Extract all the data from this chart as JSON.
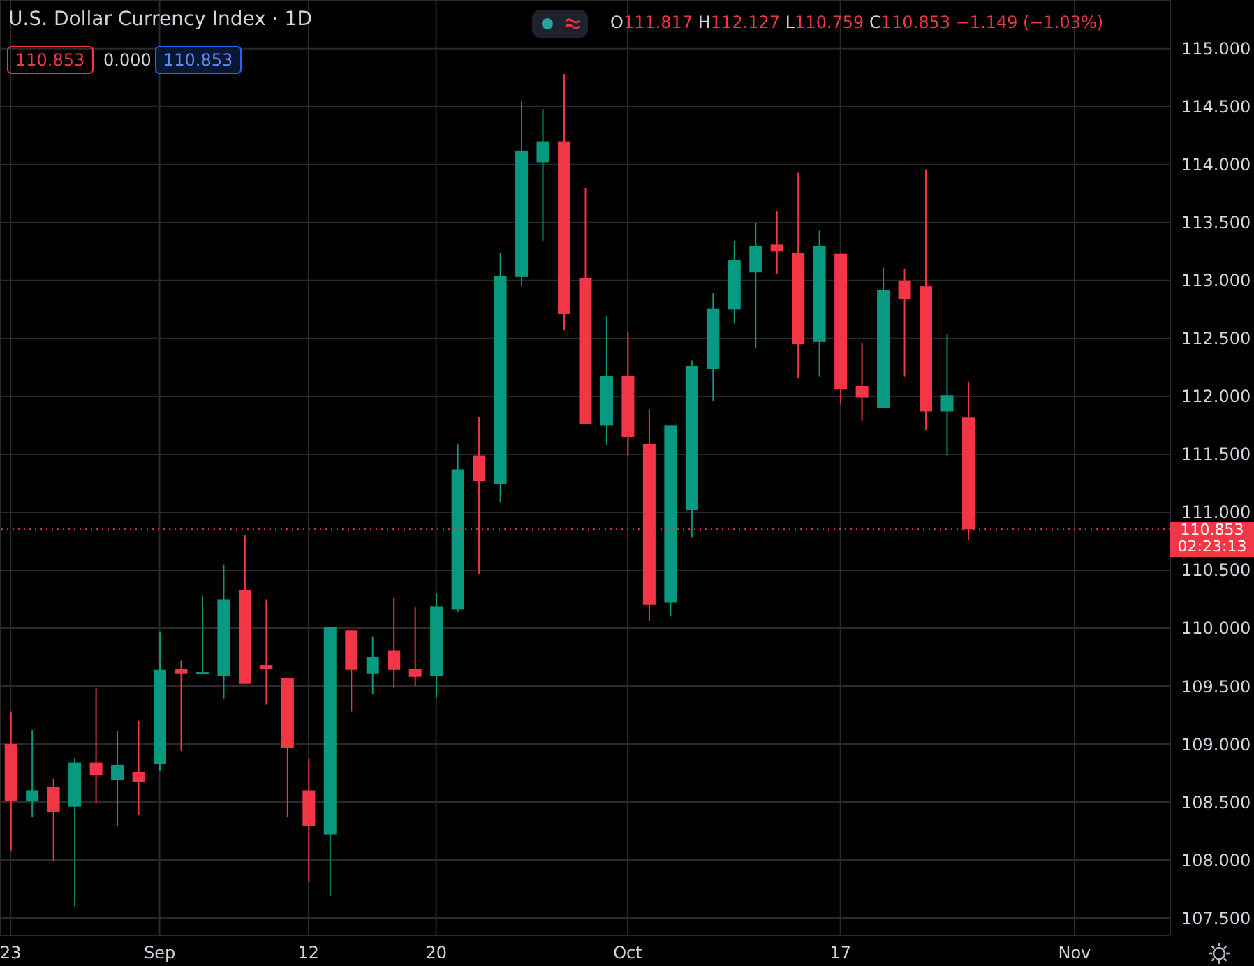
{
  "chart_data": {
    "type": "candlestick",
    "title": "U.S. Dollar Currency Index · 1D",
    "categories": [
      "23",
      null,
      null,
      null,
      null,
      null,
      null,
      "Sep",
      null,
      null,
      null,
      null,
      null,
      null,
      "12",
      null,
      null,
      null,
      null,
      null,
      "20",
      null,
      null,
      null,
      null,
      null,
      null,
      null,
      null,
      "Oct",
      null,
      null,
      null,
      null,
      null,
      null,
      null,
      null,
      null,
      "17",
      null,
      null,
      null,
      null,
      null,
      null,
      null,
      null,
      null,
      null,
      "Nov",
      null,
      null,
      null,
      null
    ],
    "ohlc": [
      [
        109.0,
        109.28,
        108.08,
        108.51
      ],
      [
        108.51,
        109.12,
        108.37,
        108.6
      ],
      [
        108.63,
        108.7,
        107.99,
        108.41
      ],
      [
        108.46,
        108.88,
        107.6,
        108.84
      ],
      [
        108.84,
        109.48,
        108.49,
        108.73
      ],
      [
        108.69,
        109.11,
        108.29,
        108.82
      ],
      [
        108.76,
        109.2,
        108.39,
        108.67
      ],
      [
        108.83,
        109.97,
        108.77,
        109.64
      ],
      [
        109.65,
        109.72,
        108.94,
        109.61
      ],
      [
        109.61,
        110.28,
        109.61,
        109.62
      ],
      [
        109.59,
        110.55,
        109.39,
        110.25
      ],
      [
        110.33,
        110.8,
        109.52,
        109.52
      ],
      [
        109.68,
        110.25,
        109.34,
        109.65
      ],
      [
        109.57,
        109.57,
        108.37,
        108.97
      ],
      [
        108.6,
        108.87,
        107.81,
        108.29
      ],
      [
        108.22,
        110.01,
        107.69,
        110.01
      ],
      [
        109.98,
        109.98,
        109.28,
        109.64
      ],
      [
        109.61,
        109.93,
        109.43,
        109.75
      ],
      [
        109.81,
        110.26,
        109.49,
        109.64
      ],
      [
        109.65,
        110.18,
        109.5,
        109.58
      ],
      [
        109.59,
        110.3,
        109.4,
        110.19
      ],
      [
        110.16,
        111.59,
        110.14,
        111.37
      ],
      [
        111.49,
        111.82,
        110.47,
        111.27
      ],
      [
        111.24,
        113.24,
        111.09,
        113.04
      ],
      [
        113.03,
        114.55,
        112.95,
        114.12
      ],
      [
        114.02,
        114.48,
        113.34,
        114.2
      ],
      [
        114.2,
        114.78,
        112.57,
        112.71
      ],
      [
        113.02,
        113.8,
        111.76,
        111.76
      ],
      [
        111.75,
        112.69,
        111.58,
        112.18
      ],
      [
        112.18,
        112.55,
        111.49,
        111.65
      ],
      [
        111.59,
        111.89,
        110.06,
        110.2
      ],
      [
        110.22,
        111.75,
        110.1,
        111.75
      ],
      [
        111.02,
        112.31,
        110.78,
        112.26
      ],
      [
        112.24,
        112.89,
        111.96,
        112.76
      ],
      [
        112.75,
        113.34,
        112.63,
        113.18
      ],
      [
        113.07,
        113.5,
        112.42,
        113.3
      ],
      [
        113.31,
        113.6,
        113.06,
        113.25
      ],
      [
        113.24,
        113.93,
        112.16,
        112.45
      ],
      [
        112.47,
        113.43,
        112.17,
        113.3
      ],
      [
        113.23,
        113.23,
        111.93,
        112.06
      ],
      [
        112.09,
        112.46,
        111.79,
        111.99
      ],
      [
        111.9,
        113.11,
        111.9,
        112.92
      ],
      [
        113.0,
        113.1,
        112.17,
        112.84
      ],
      [
        112.95,
        113.96,
        111.71,
        111.87
      ],
      [
        111.87,
        112.54,
        111.49,
        112.01
      ],
      [
        111.817,
        112.127,
        110.759,
        110.853
      ],
      null,
      null,
      null,
      null,
      null,
      null,
      null,
      null,
      null
    ],
    "colors": [
      "#f23645",
      "#089981",
      "#f23645",
      "#089981",
      "#f23645",
      "#089981",
      "#f23645",
      "#089981",
      "#f23645",
      "#089981",
      "#089981",
      "#f23645",
      "#f23645",
      "#f23645",
      "#f23645",
      "#089981",
      "#f23645",
      "#089981",
      "#f23645",
      "#f23645",
      "#089981",
      "#089981",
      "#f23645",
      "#089981",
      "#089981",
      "#089981",
      "#f23645",
      "#f23645",
      "#089981",
      "#f23645",
      "#f23645",
      "#089981",
      "#089981",
      "#089981",
      "#089981",
      "#089981",
      "#f23645",
      "#f23645",
      "#089981",
      "#f23645",
      "#f23645",
      "#089981",
      "#f23645",
      "#f23645",
      "#089981",
      "#f23645",
      null,
      null,
      null,
      null,
      null,
      null,
      null,
      null,
      null
    ],
    "ylim": [
      107.35,
      115.42
    ],
    "yticks": [
      {
        "value": 107.5,
        "label": "107.500"
      },
      {
        "value": 108,
        "label": "108.000"
      },
      {
        "value": 108.5,
        "label": "108.500"
      },
      {
        "value": 109,
        "label": "109.000"
      },
      {
        "value": 109.5,
        "label": "109.500"
      },
      {
        "value": 110,
        "label": "110.000"
      },
      {
        "value": 110.5,
        "label": "110.500"
      },
      {
        "value": 111,
        "label": "111.000"
      },
      {
        "value": 111.5,
        "label": "111.500"
      },
      {
        "value": 112,
        "label": "112.000"
      },
      {
        "value": 112.5,
        "label": "112.500"
      },
      {
        "value": 113,
        "label": "113.000"
      },
      {
        "value": 113.5,
        "label": "113.500"
      },
      {
        "value": 114,
        "label": "114.000"
      },
      {
        "value": 114.5,
        "label": "114.500"
      },
      {
        "value": 115,
        "label": "115.000"
      }
    ],
    "grid": true,
    "ref_lines": [
      {
        "axis": "y",
        "value": 110.853,
        "label": "110.853",
        "color": "#f23645",
        "line_style": "dotted"
      }
    ],
    "annotations": [
      "O111.817 H112.127 L110.759 C110.853 −1.149 (−1.03%)",
      "110.853",
      "0.000",
      "110.853",
      "02:23:13"
    ]
  }
}
